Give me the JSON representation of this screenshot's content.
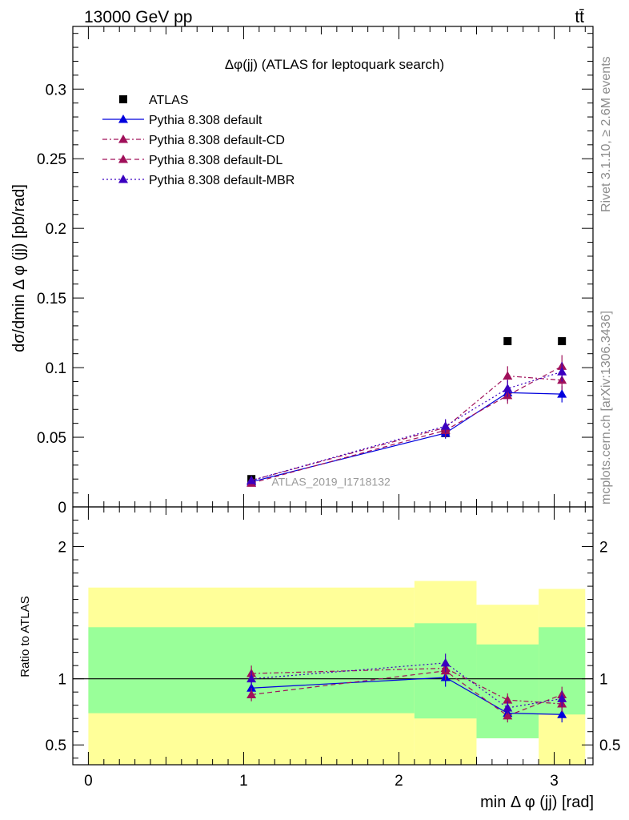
{
  "header": {
    "left": "13000 GeV pp",
    "right": "tt̄"
  },
  "side_labels": {
    "rivet": "Rivet 3.1.10, ≥ 2.6M events",
    "mcplots": "mcplots.cern.ch [arXiv:1306.3436]"
  },
  "colors": {
    "atlas": "#000000",
    "default": "#0000dd",
    "cd": "#a0105a",
    "dl": "#a0105a",
    "mbr": "#3a00c0",
    "band_inner": "#99ff99",
    "band_outer": "#ffff99"
  },
  "chart_data": [
    {
      "type": "line",
      "title": "Δφ(jj) (ATLAS for leptoquark search)",
      "ylabel": "dσ/dmin Δ φ (jj) [pb/rad]",
      "xlim": [
        -0.1,
        3.25
      ],
      "ylim": [
        0,
        0.345
      ],
      "yticks": [
        0,
        0.05,
        0.1,
        0.15,
        0.2,
        0.25,
        0.3
      ],
      "ytick_labels": [
        "0",
        "0.05",
        "0.1",
        "0.15",
        "0.2",
        "0.25",
        "0.3"
      ],
      "watermark": "ATLAS_2019_I1718132",
      "legend_position": "top-left",
      "x": [
        1.05,
        2.3,
        2.7,
        3.05
      ],
      "series": [
        {
          "name": "ATLAS",
          "marker": "square",
          "values": [
            0.02,
            0.053,
            0.119,
            0.119
          ]
        },
        {
          "name": "Pythia 8.308 default",
          "style": "solid",
          "values": [
            0.018,
            0.053,
            0.082,
            0.081
          ],
          "err": [
            0.002,
            0.004,
            0.006,
            0.006
          ]
        },
        {
          "name": "Pythia 8.308 default-CD",
          "style": "dashdot",
          "values": [
            0.019,
            0.057,
            0.094,
            0.091
          ],
          "err": [
            0.002,
            0.005,
            0.007,
            0.007
          ]
        },
        {
          "name": "Pythia 8.308 default-DL",
          "style": "dashed",
          "values": [
            0.017,
            0.055,
            0.08,
            0.101
          ],
          "err": [
            0.002,
            0.005,
            0.006,
            0.008
          ]
        },
        {
          "name": "Pythia 8.308 default-MBR",
          "style": "dotted",
          "values": [
            0.019,
            0.058,
            0.085,
            0.097
          ],
          "err": [
            0.002,
            0.005,
            0.006,
            0.007
          ]
        }
      ]
    },
    {
      "type": "line",
      "ylabel": "Ratio to ATLAS",
      "xlabel": "min Δ φ (jj) [rad]",
      "xlim": [
        -0.1,
        3.25
      ],
      "ylim": [
        0.35,
        2.3
      ],
      "xticks": [
        0,
        1,
        2,
        3
      ],
      "xtick_labels": [
        "0",
        "1",
        "2",
        "3"
      ],
      "yticks": [
        0.5,
        1,
        2
      ],
      "ytick_labels": [
        "0.5",
        "1",
        "2"
      ],
      "reference_line": 1,
      "bands": [
        {
          "x0": 0.0,
          "x1": 2.1,
          "inner": [
            0.74,
            1.39
          ],
          "outer": [
            0.35,
            1.69
          ]
        },
        {
          "x0": 2.1,
          "x1": 2.5,
          "inner": [
            0.7,
            1.42
          ],
          "outer": [
            0.35,
            1.74
          ]
        },
        {
          "x0": 2.5,
          "x1": 2.9,
          "inner": [
            0.55,
            1.26
          ],
          "outer": [
            0.35,
            1.56
          ]
        },
        {
          "x0": 2.9,
          "x1": 3.2,
          "inner": [
            0.73,
            1.39
          ],
          "outer": [
            0.35,
            1.68
          ]
        }
      ],
      "band_gap": {
        "x0": 2.5,
        "x1": 2.9,
        "y0": 0.35,
        "y1": 0.55
      },
      "x": [
        1.05,
        2.3,
        2.7,
        3.05
      ],
      "series": [
        {
          "name": "Pythia 8.308 default",
          "style": "solid",
          "values": [
            0.93,
            1.01,
            0.74,
            0.73
          ],
          "err": [
            0.06,
            0.07,
            0.05,
            0.06
          ]
        },
        {
          "name": "Pythia 8.308 default-CD",
          "style": "dashdot",
          "values": [
            1.04,
            1.08,
            0.84,
            0.81
          ],
          "err": [
            0.06,
            0.07,
            0.05,
            0.06
          ]
        },
        {
          "name": "Pythia 8.308 default-DL",
          "style": "dashed",
          "values": [
            0.88,
            1.06,
            0.72,
            0.88
          ],
          "err": [
            0.05,
            0.07,
            0.05,
            0.06
          ]
        },
        {
          "name": "Pythia 8.308 default-MBR",
          "style": "dotted",
          "values": [
            1.0,
            1.12,
            0.78,
            0.85
          ],
          "err": [
            0.06,
            0.07,
            0.05,
            0.06
          ]
        }
      ]
    }
  ]
}
